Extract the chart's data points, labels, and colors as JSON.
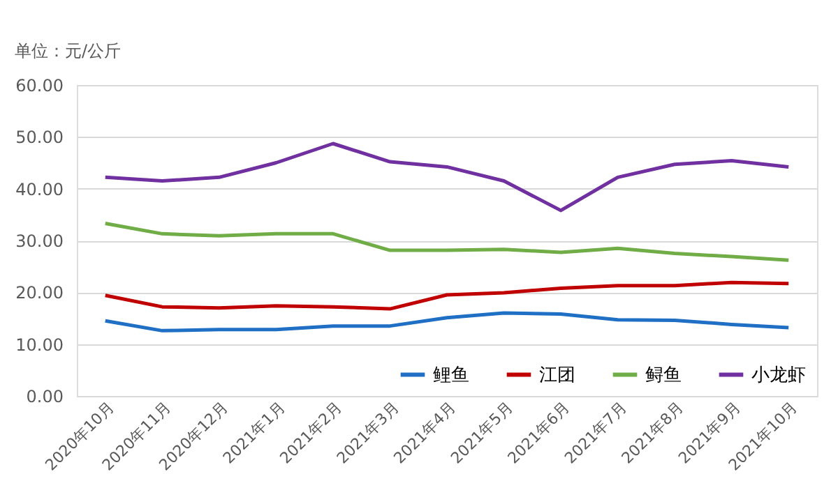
{
  "chart_data": {
    "type": "line",
    "ylabel": "单位：元/公斤",
    "categories": [
      "2020年10月",
      "2020年11月",
      "2020年12月",
      "2021年1月",
      "2021年2月",
      "2021年3月",
      "2021年4月",
      "2021年5月",
      "2021年6月",
      "2021年7月",
      "2021年8月",
      "2021年9月",
      "2021年10月"
    ],
    "series": [
      {
        "name": "鲤鱼",
        "color": "#1f6fc5",
        "values": [
          14.5,
          12.6,
          12.8,
          12.8,
          13.5,
          13.5,
          15.1,
          16.0,
          15.8,
          14.7,
          14.6,
          13.8,
          13.2
        ]
      },
      {
        "name": "江团",
        "color": "#c00000",
        "values": [
          19.4,
          17.2,
          17.0,
          17.4,
          17.2,
          16.8,
          19.5,
          19.9,
          20.8,
          21.3,
          21.3,
          21.9,
          21.7
        ]
      },
      {
        "name": "鲟鱼",
        "color": "#70ad47",
        "values": [
          33.3,
          31.3,
          30.9,
          31.3,
          31.3,
          28.1,
          28.1,
          28.3,
          27.7,
          28.5,
          27.5,
          26.9,
          26.2
        ]
      },
      {
        "name": "小龙虾",
        "color": "#7030a0",
        "values": [
          42.2,
          41.5,
          42.2,
          45.0,
          48.7,
          45.2,
          44.2,
          41.5,
          35.8,
          42.2,
          44.7,
          45.4,
          44.2
        ]
      }
    ],
    "ylim": [
      0,
      60
    ],
    "yticks": [
      {
        "value": 0,
        "label": "0.00"
      },
      {
        "value": 10,
        "label": "10.00"
      },
      {
        "value": 20,
        "label": "20.00"
      },
      {
        "value": 30,
        "label": "30.00"
      },
      {
        "value": 40,
        "label": "40.00"
      },
      {
        "value": 50,
        "label": "50.00"
      },
      {
        "value": 60,
        "label": "60.00"
      }
    ],
    "grid": "y",
    "legend": "bottom right",
    "marker": "none",
    "line_style": "solid"
  }
}
